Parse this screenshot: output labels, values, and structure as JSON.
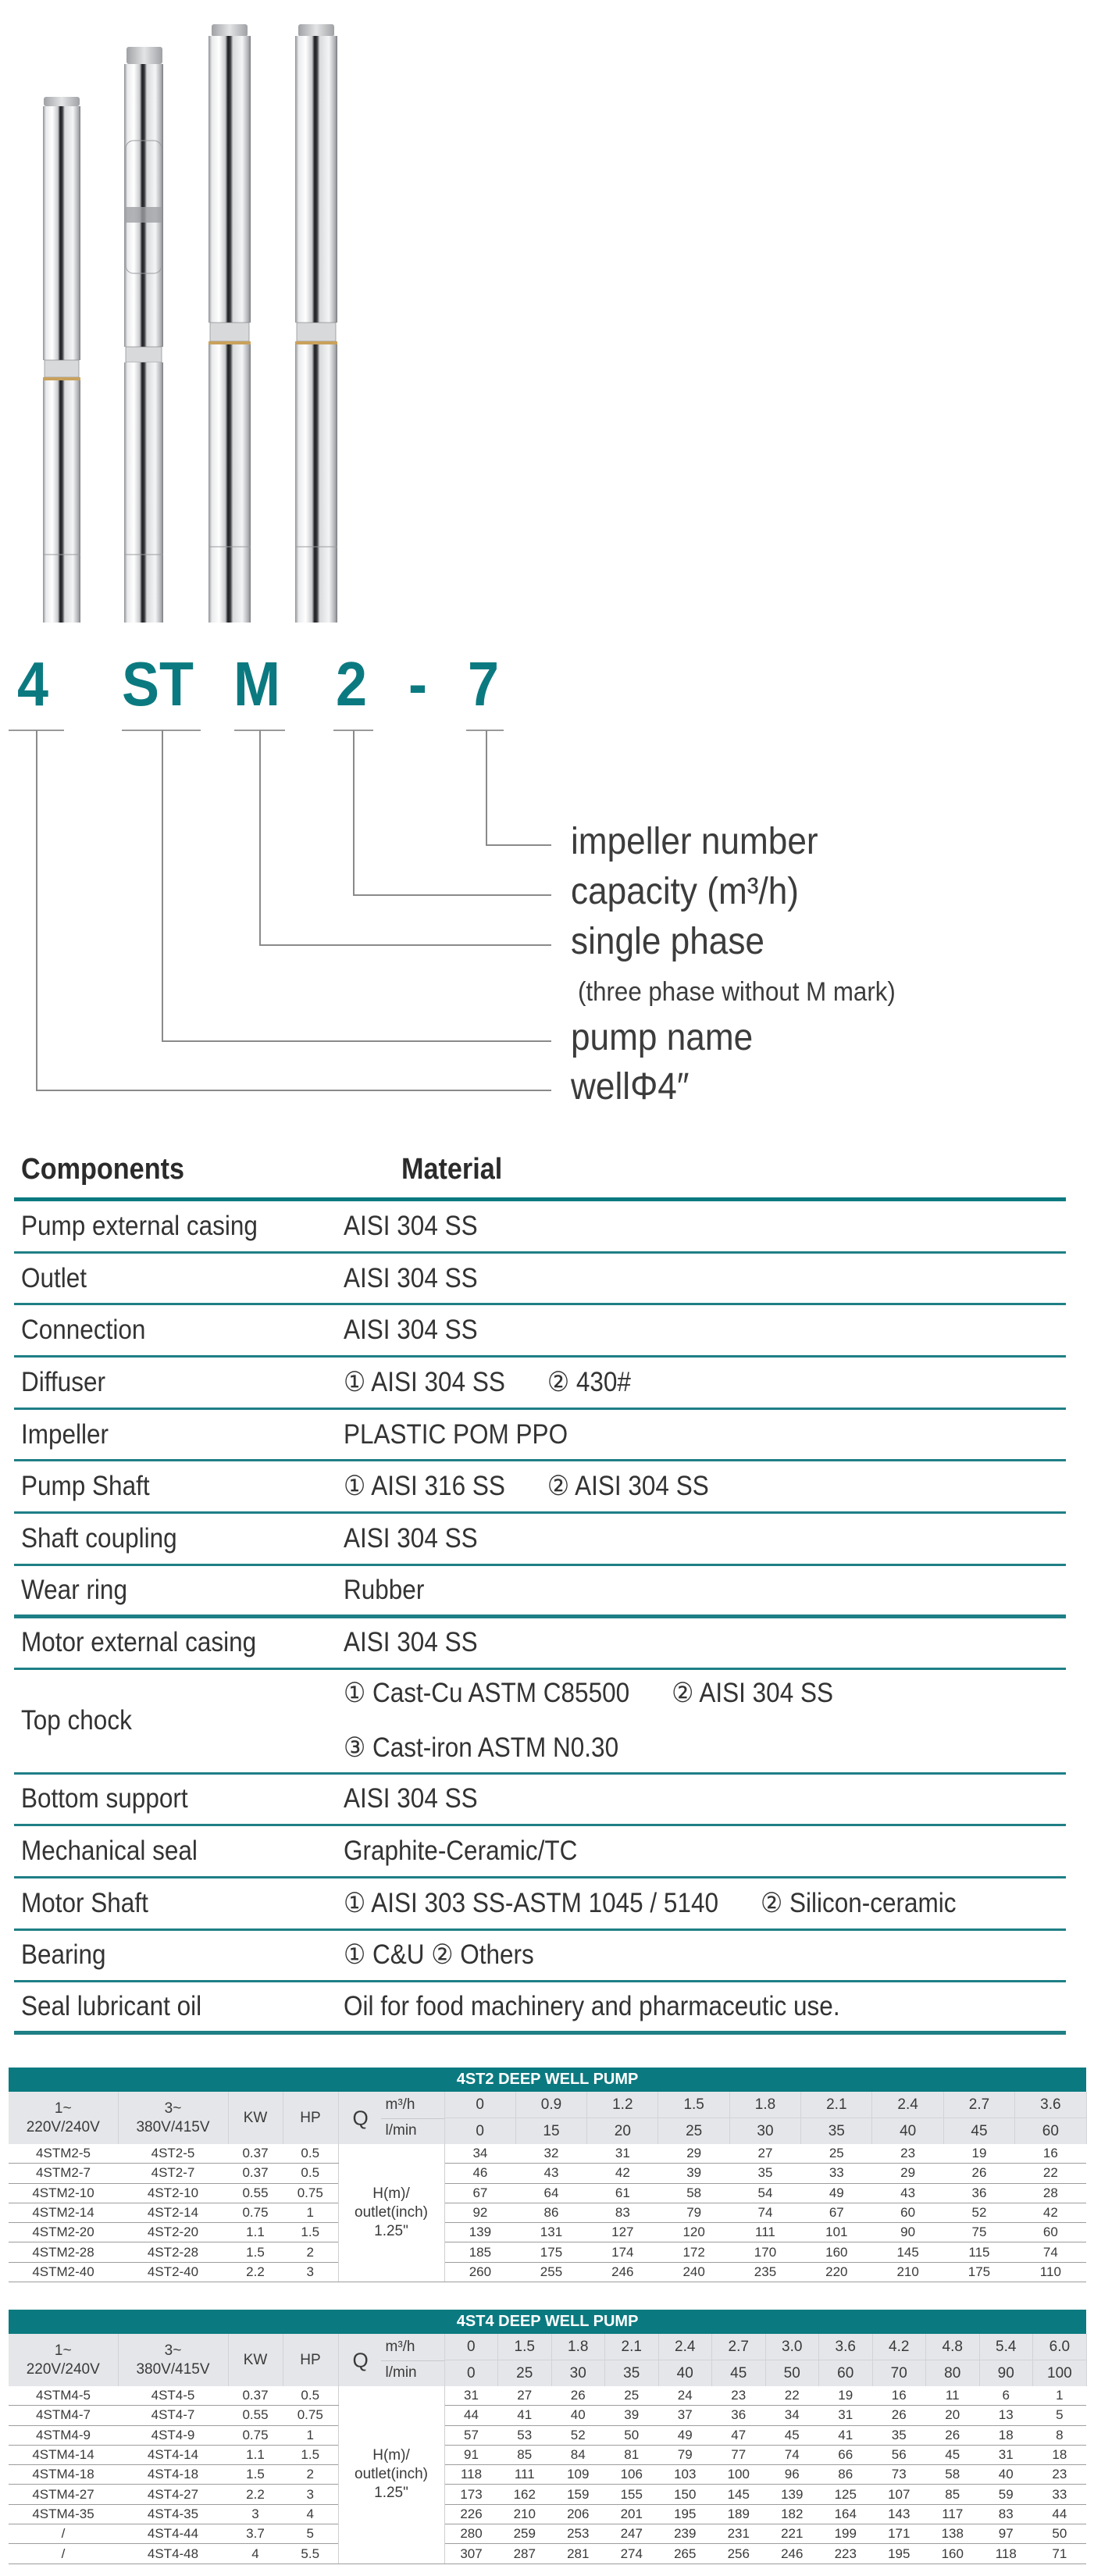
{
  "brand_color": "#0b7a80",
  "model_code": {
    "letters": [
      "4",
      "ST",
      "M",
      "2",
      "-",
      "7"
    ],
    "legend": {
      "impeller_number": "impeller number",
      "capacity": "capacity (m³/h)",
      "single_phase": "single phase",
      "single_phase_note": "(three phase without M mark)",
      "pump_name": "pump name",
      "well": "wellΦ4″"
    }
  },
  "components_table": {
    "header_component": "Components",
    "header_material": "Material",
    "rows": [
      {
        "name": "Pump external casing",
        "lines": [
          [
            "AISI 304 SS"
          ]
        ]
      },
      {
        "name": "Outlet",
        "lines": [
          [
            "AISI 304 SS"
          ]
        ]
      },
      {
        "name": "Connection",
        "lines": [
          [
            "AISI 304 SS"
          ]
        ]
      },
      {
        "name": "Diffuser",
        "lines": [
          [
            "① AISI 304 SS",
            "② 430#"
          ]
        ]
      },
      {
        "name": "Impeller",
        "lines": [
          [
            "PLASTIC  POM  PPO"
          ]
        ]
      },
      {
        "name": "Pump Shaft",
        "lines": [
          [
            "① AISI 316 SS",
            "② AISI 304 SS"
          ]
        ]
      },
      {
        "name": "Shaft coupling",
        "lines": [
          [
            "AISI 304 SS"
          ]
        ]
      },
      {
        "name": "Wear ring",
        "lines": [
          [
            "Rubber"
          ]
        ]
      },
      {
        "name": "Motor external casing",
        "lines": [
          [
            "AISI 304 SS"
          ]
        ]
      },
      {
        "name": "Top chock",
        "lines": [
          [
            "① Cast-Cu ASTM C85500",
            "② AISI 304 SS"
          ],
          [
            "③ Cast-iron ASTM N0.30"
          ]
        ]
      },
      {
        "name": "Bottom support",
        "lines": [
          [
            "AISI 304 SS"
          ]
        ]
      },
      {
        "name": "Mechanical seal",
        "lines": [
          [
            "Graphite-Ceramic/TC"
          ]
        ]
      },
      {
        "name": "Motor Shaft",
        "lines": [
          [
            "① AISI 303 SS-ASTM 1045 / 5140",
            "② Silicon-ceramic"
          ]
        ]
      },
      {
        "name": "Bearing",
        "lines": [
          [
            "① C&U  ② Others"
          ]
        ]
      },
      {
        "name": "Seal lubricant oil",
        "lines": [
          [
            "Oil for food machinery and pharmaceutic use."
          ]
        ]
      }
    ]
  },
  "pump_tables": [
    {
      "title": "4ST2 DEEP WELL PUMP",
      "col_headers": {
        "single_phase": [
          "1~",
          "220V/240V"
        ],
        "three_phase": [
          "3~",
          "380V/415V"
        ],
        "kw": "KW",
        "hp": "HP",
        "q": "Q",
        "q_unit_m3h": "m³/h",
        "q_unit_lmin": "l/min"
      },
      "flow_m3h": [
        "0",
        "0.9",
        "1.2",
        "1.5",
        "1.8",
        "2.1",
        "2.4",
        "2.7",
        "3.6"
      ],
      "flow_lmin": [
        "0",
        "15",
        "20",
        "25",
        "30",
        "35",
        "40",
        "45",
        "60"
      ],
      "head_label": [
        "H(m)/",
        "outlet(inch)",
        "1.25\""
      ],
      "rows": [
        {
          "single": "4STM2-5",
          "three": "4ST2-5",
          "kw": "0.37",
          "hp": "0.5",
          "head": [
            "34",
            "32",
            "31",
            "29",
            "27",
            "25",
            "23",
            "19",
            "16"
          ]
        },
        {
          "single": "4STM2-7",
          "three": "4ST2-7",
          "kw": "0.37",
          "hp": "0.5",
          "head": [
            "46",
            "43",
            "42",
            "39",
            "35",
            "33",
            "29",
            "26",
            "22"
          ]
        },
        {
          "single": "4STM2-10",
          "three": "4ST2-10",
          "kw": "0.55",
          "hp": "0.75",
          "head": [
            "67",
            "64",
            "61",
            "58",
            "54",
            "49",
            "43",
            "36",
            "28"
          ]
        },
        {
          "single": "4STM2-14",
          "three": "4ST2-14",
          "kw": "0.75",
          "hp": "1",
          "head": [
            "92",
            "86",
            "83",
            "79",
            "74",
            "67",
            "60",
            "52",
            "42"
          ]
        },
        {
          "single": "4STM2-20",
          "three": "4ST2-20",
          "kw": "1.1",
          "hp": "1.5",
          "head": [
            "139",
            "131",
            "127",
            "120",
            "111",
            "101",
            "90",
            "75",
            "60"
          ]
        },
        {
          "single": "4STM2-28",
          "three": "4ST2-28",
          "kw": "1.5",
          "hp": "2",
          "head": [
            "185",
            "175",
            "174",
            "172",
            "170",
            "160",
            "145",
            "115",
            "74"
          ]
        },
        {
          "single": "4STM2-40",
          "three": "4ST2-40",
          "kw": "2.2",
          "hp": "3",
          "head": [
            "260",
            "255",
            "246",
            "240",
            "235",
            "220",
            "210",
            "175",
            "110"
          ]
        }
      ]
    },
    {
      "title": "4ST4 DEEP WELL PUMP",
      "col_headers": {
        "single_phase": [
          "1~",
          "220V/240V"
        ],
        "three_phase": [
          "3~",
          "380V/415V"
        ],
        "kw": "KW",
        "hp": "HP",
        "q": "Q",
        "q_unit_m3h": "m³/h",
        "q_unit_lmin": "l/min"
      },
      "flow_m3h": [
        "0",
        "1.5",
        "1.8",
        "2.1",
        "2.4",
        "2.7",
        "3.0",
        "3.6",
        "4.2",
        "4.8",
        "5.4",
        "6.0"
      ],
      "flow_lmin": [
        "0",
        "25",
        "30",
        "35",
        "40",
        "45",
        "50",
        "60",
        "70",
        "80",
        "90",
        "100"
      ],
      "head_label": [
        "H(m)/",
        "outlet(inch)",
        "1.25\""
      ],
      "rows": [
        {
          "single": "4STM4-5",
          "three": "4ST4-5",
          "kw": "0.37",
          "hp": "0.5",
          "head": [
            "31",
            "27",
            "26",
            "25",
            "24",
            "23",
            "22",
            "19",
            "16",
            "11",
            "6",
            "1"
          ]
        },
        {
          "single": "4STM4-7",
          "three": "4ST4-7",
          "kw": "0.55",
          "hp": "0.75",
          "head": [
            "44",
            "41",
            "40",
            "39",
            "37",
            "36",
            "34",
            "31",
            "26",
            "20",
            "13",
            "5"
          ]
        },
        {
          "single": "4STM4-9",
          "three": "4ST4-9",
          "kw": "0.75",
          "hp": "1",
          "head": [
            "57",
            "53",
            "52",
            "50",
            "49",
            "47",
            "45",
            "41",
            "35",
            "26",
            "18",
            "8"
          ]
        },
        {
          "single": "4STM4-14",
          "three": "4ST4-14",
          "kw": "1.1",
          "hp": "1.5",
          "head": [
            "91",
            "85",
            "84",
            "81",
            "79",
            "77",
            "74",
            "66",
            "56",
            "45",
            "31",
            "18"
          ]
        },
        {
          "single": "4STM4-18",
          "three": "4ST4-18",
          "kw": "1.5",
          "hp": "2",
          "head": [
            "118",
            "111",
            "109",
            "106",
            "103",
            "100",
            "96",
            "86",
            "73",
            "58",
            "40",
            "23"
          ]
        },
        {
          "single": "4STM4-27",
          "three": "4ST4-27",
          "kw": "2.2",
          "hp": "3",
          "head": [
            "173",
            "162",
            "159",
            "155",
            "150",
            "145",
            "139",
            "125",
            "107",
            "85",
            "59",
            "33"
          ]
        },
        {
          "single": "4STM4-35",
          "three": "4ST4-35",
          "kw": "3",
          "hp": "4",
          "head": [
            "226",
            "210",
            "206",
            "201",
            "195",
            "189",
            "182",
            "164",
            "143",
            "117",
            "83",
            "44"
          ]
        },
        {
          "single": "/",
          "three": "4ST4-44",
          "kw": "3.7",
          "hp": "5",
          "head": [
            "280",
            "259",
            "253",
            "247",
            "239",
            "231",
            "221",
            "199",
            "171",
            "138",
            "97",
            "50"
          ]
        },
        {
          "single": "/",
          "three": "4ST4-48",
          "kw": "4",
          "hp": "5.5",
          "head": [
            "307",
            "287",
            "281",
            "274",
            "265",
            "256",
            "246",
            "223",
            "195",
            "160",
            "118",
            "71"
          ]
        }
      ]
    }
  ]
}
